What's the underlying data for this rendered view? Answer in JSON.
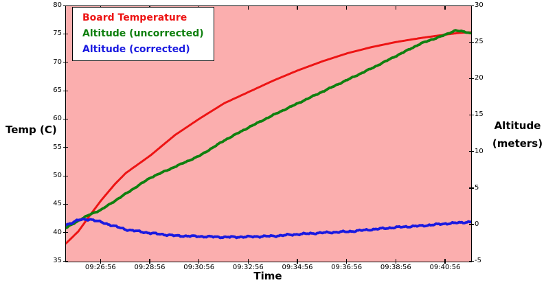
{
  "figure": {
    "background": "#ffffff",
    "plot_background": "#fbaeae",
    "frame_color": "#000000"
  },
  "legend": {
    "position": "upper-left",
    "border_color": "#000000",
    "background": "#ffffff"
  },
  "chart_data": {
    "type": "line",
    "title": "",
    "grid": false,
    "plot_background": "#fbaeae",
    "legend_position": "upper-left",
    "x_axis": {
      "label": "Time",
      "start": "09:25:30",
      "end": "09:41:58",
      "ticks": [
        "09:26:56",
        "09:28:56",
        "09:30:56",
        "09:32:56",
        "09:34:56",
        "09:36:56",
        "09:38:56",
        "09:40:56"
      ]
    },
    "y_left": {
      "label": "Temp (C)",
      "min": 35,
      "max": 80,
      "ticks": [
        35,
        40,
        45,
        50,
        55,
        60,
        65,
        70,
        75,
        80
      ]
    },
    "y_right": {
      "label": "Altitude (meters)",
      "label_lines": [
        "Altitude",
        "(meters)"
      ],
      "min": -5,
      "max": 30,
      "ticks": [
        -5,
        0,
        5,
        10,
        15,
        20,
        25,
        30
      ]
    },
    "series": [
      {
        "name": "Board Temperature",
        "color": "#ed1414",
        "axis": "left",
        "points": [
          [
            "09:25:30",
            38.2
          ],
          [
            "09:26:00",
            40.3
          ],
          [
            "09:26:30",
            43.3
          ],
          [
            "09:26:56",
            45.8
          ],
          [
            "09:27:30",
            48.7
          ],
          [
            "09:27:56",
            50.6
          ],
          [
            "09:28:56",
            53.7
          ],
          [
            "09:29:56",
            57.3
          ],
          [
            "09:30:56",
            60.2
          ],
          [
            "09:31:56",
            62.9
          ],
          [
            "09:32:56",
            64.9
          ],
          [
            "09:33:56",
            66.9
          ],
          [
            "09:34:56",
            68.7
          ],
          [
            "09:35:56",
            70.3
          ],
          [
            "09:36:56",
            71.7
          ],
          [
            "09:37:56",
            72.8
          ],
          [
            "09:38:56",
            73.7
          ],
          [
            "09:39:56",
            74.4
          ],
          [
            "09:40:56",
            75.0
          ],
          [
            "09:41:30",
            75.3
          ],
          [
            "09:41:58",
            75.4
          ]
        ]
      },
      {
        "name": "Altitude (uncorrected)",
        "color": "#0f800f",
        "axis": "right",
        "points": [
          [
            "09:25:30",
            -0.4
          ],
          [
            "09:26:00",
            0.6
          ],
          [
            "09:26:30",
            1.5
          ],
          [
            "09:26:56",
            2.1
          ],
          [
            "09:27:56",
            4.3
          ],
          [
            "09:28:56",
            6.5
          ],
          [
            "09:29:56",
            8.0
          ],
          [
            "09:30:56",
            9.5
          ],
          [
            "09:31:56",
            11.6
          ],
          [
            "09:32:56",
            13.4
          ],
          [
            "09:33:56",
            15.1
          ],
          [
            "09:34:56",
            16.7
          ],
          [
            "09:35:56",
            18.3
          ],
          [
            "09:36:56",
            19.9
          ],
          [
            "09:37:56",
            21.5
          ],
          [
            "09:38:56",
            23.2
          ],
          [
            "09:39:56",
            24.9
          ],
          [
            "09:40:56",
            26.1
          ],
          [
            "09:41:20",
            26.7
          ],
          [
            "09:41:58",
            26.3
          ]
        ]
      },
      {
        "name": "Altitude (corrected)",
        "color": "#1a1ae0",
        "axis": "right",
        "points": [
          [
            "09:25:30",
            0.0
          ],
          [
            "09:26:00",
            0.7
          ],
          [
            "09:26:30",
            0.8
          ],
          [
            "09:26:56",
            0.4
          ],
          [
            "09:27:56",
            -0.6
          ],
          [
            "09:28:56",
            -1.1
          ],
          [
            "09:29:56",
            -1.45
          ],
          [
            "09:30:56",
            -1.55
          ],
          [
            "09:31:56",
            -1.65
          ],
          [
            "09:32:56",
            -1.6
          ],
          [
            "09:33:56",
            -1.5
          ],
          [
            "09:34:56",
            -1.25
          ],
          [
            "09:35:56",
            -1.05
          ],
          [
            "09:36:56",
            -0.9
          ],
          [
            "09:37:56",
            -0.6
          ],
          [
            "09:38:56",
            -0.3
          ],
          [
            "09:39:56",
            -0.1
          ],
          [
            "09:40:56",
            0.2
          ],
          [
            "09:41:58",
            0.45
          ]
        ]
      }
    ]
  }
}
